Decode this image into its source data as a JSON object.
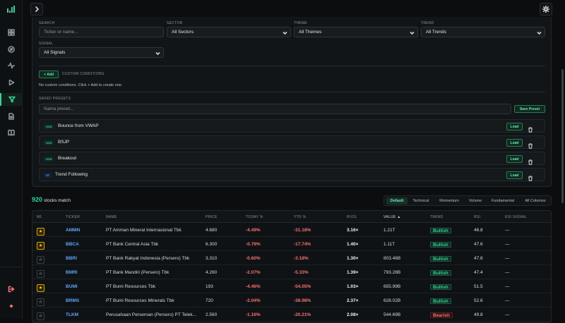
{
  "filters": {
    "search_label": "SEARCH",
    "search_placeholder": "Ticker or name...",
    "sector_label": "SECTOR",
    "sector_value": "All Sectors",
    "theme_label": "THEME",
    "theme_value": "All Themes",
    "trend_label": "TREND",
    "trend_value": "All Trends",
    "signal_label": "SIGNAL",
    "signal_value": "All Signals"
  },
  "custom": {
    "add_label": "+ Add",
    "title": "CUSTOM CONDITIONS",
    "empty_text": "No custom conditions. Click + Add to create one."
  },
  "presets": {
    "title": "SAVED PRESETS",
    "name_placeholder": "Nama preset...",
    "save_label": "Save Preset",
    "load_label": "Load",
    "items": [
      {
        "tag": "SCR",
        "name": "Bounce from VWAP"
      },
      {
        "tag": "SCR",
        "name": "BSJP"
      },
      {
        "tag": "SCR",
        "name": "Breakout"
      },
      {
        "tag": "ST",
        "name": "Trend Following"
      }
    ]
  },
  "results": {
    "count": "920",
    "count_suffix": "stocks match",
    "tabs": [
      "Default",
      "Technical",
      "Momentum",
      "Volume",
      "Fundamental",
      "All Columns"
    ],
    "active_tab": "Default"
  },
  "table": {
    "headers": {
      "wl": "WL",
      "ticker": "TICKER",
      "name": "NAME",
      "price": "PRICE",
      "today": "TODAY %",
      "ytd": "YTD %",
      "rvol": "RVOL",
      "value": "VALUE ▲",
      "trend": "TREND",
      "rsi": "RSI",
      "rsi_signal": "RSI SIGNAL"
    },
    "rows": [
      {
        "wl": "★",
        "ticker": "AMMN",
        "name": "PT Amman Mineral Internasional Tbk",
        "price": "4.680",
        "today": "-4.49%",
        "ytd": "-31.18%",
        "rvol": "3.16×",
        "value": "1.21T",
        "trend": "Bullish",
        "rsi": "46.8",
        "rsi_signal": "—"
      },
      {
        "wl": "★",
        "ticker": "BBCA",
        "name": "PT Bank Central Asia Tbk",
        "price": "6.300",
        "today": "-0.79%",
        "ytd": "-17.74%",
        "rvol": "1.40×",
        "value": "1.11T",
        "trend": "Bullish",
        "rsi": "47.6",
        "rsi_signal": "—"
      },
      {
        "wl": "☆",
        "ticker": "BBRI",
        "name": "PT Bank Rakyat Indonesia (Persero) Tbk",
        "price": "3.310",
        "today": "-0.60%",
        "ytd": "-3.18%",
        "rvol": "1.30×",
        "value": "803.46B",
        "trend": "Bullish",
        "rsi": "47.8",
        "rsi_signal": "—"
      },
      {
        "wl": "☆",
        "ticker": "BMRI",
        "name": "PT Bank Mandiri (Persero) Tbk",
        "price": "4.260",
        "today": "-2.07%",
        "ytd": "-5.33%",
        "rvol": "1.39×",
        "value": "793.28B",
        "trend": "Bullish",
        "rsi": "47.4",
        "rsi_signal": "—"
      },
      {
        "wl": "★",
        "ticker": "BUMI",
        "name": "PT Bumi Resources Tbk",
        "price": "193",
        "today": "-4.46%",
        "ytd": "-54.05%",
        "rvol": "1.03×",
        "value": "655.99B",
        "trend": "Bullish",
        "rsi": "51.5",
        "rsi_signal": "—"
      },
      {
        "wl": "☆",
        "ticker": "BRMS",
        "name": "PT Bumi Resources Minerals Tbk",
        "price": "720",
        "today": "-2.04%",
        "ytd": "-38.98%",
        "rvol": "2.37×",
        "value": "628.02B",
        "trend": "Bullish",
        "rsi": "52.6",
        "rsi_signal": "—"
      },
      {
        "wl": "☆",
        "ticker": "TLKM",
        "name": "Perusahaan Perseroan (Persero) PT Telek...",
        "price": "2.560",
        "today": "-1.16%",
        "ytd": "-20.21%",
        "rvol": "2.08×",
        "value": "544.69B",
        "trend": "Bearish",
        "rsi": "49.8",
        "rsi_signal": "—"
      }
    ]
  },
  "colors": {
    "accent": "#34d399",
    "negative": "#f87171",
    "ticker": "#60a5fa",
    "watch": "#fbbf24"
  }
}
